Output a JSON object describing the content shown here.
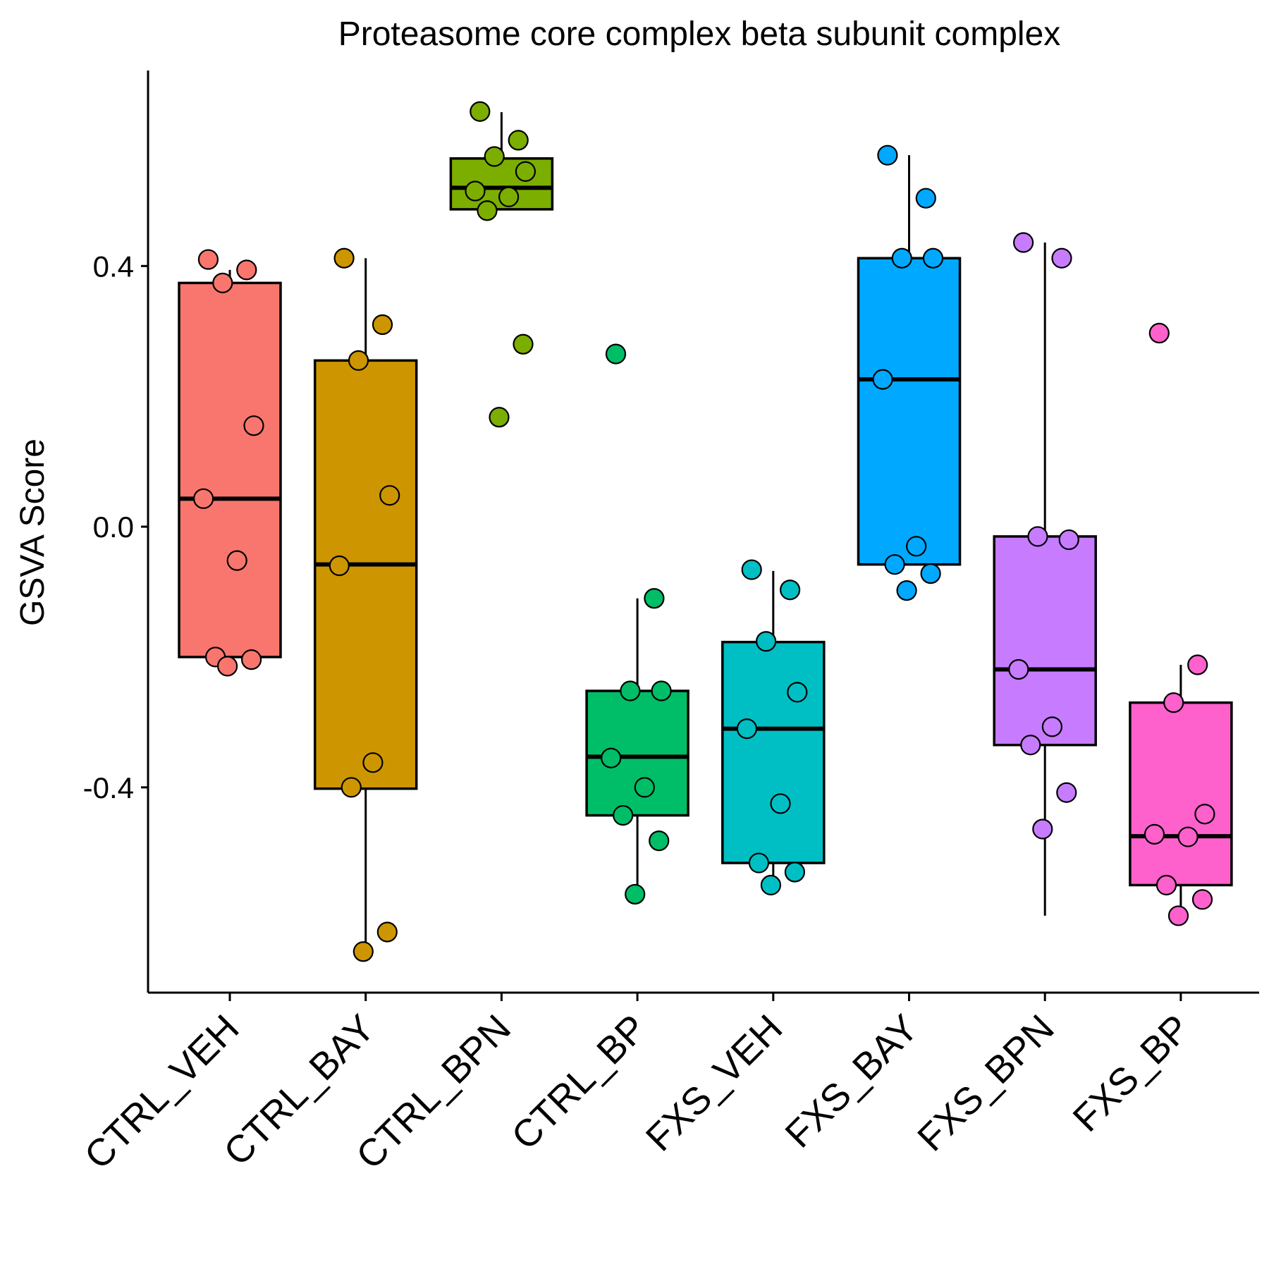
{
  "chart_data": {
    "type": "box",
    "title": "Proteasome core complex beta subunit complex",
    "xlabel": "",
    "ylabel": "GSVA Score",
    "ylim": [
      -0.715,
      0.7
    ],
    "yticks": [
      {
        "value": 0.4,
        "label": "0.4"
      },
      {
        "value": 0.0,
        "label": "0.0"
      },
      {
        "value": -0.4,
        "label": "-0.4"
      }
    ],
    "grid": false,
    "legend": "none",
    "categories": [
      "CTRL_VEH",
      "CTRL_BAY",
      "CTRL_BPN",
      "CTRL_BP",
      "FXS_VEH",
      "FXS_BAY",
      "FXS_BPN",
      "FXS_BP"
    ],
    "colors": [
      "#F8766D",
      "#CD9600",
      "#7CAE00",
      "#00BE67",
      "#00BFC4",
      "#00A9FF",
      "#C77CFF",
      "#FF61CC"
    ],
    "boxes": [
      {
        "q1": -0.2,
        "median": 0.043,
        "q3": 0.374,
        "whisker_low": -0.212,
        "whisker_high": 0.394
      },
      {
        "q1": -0.402,
        "median": -0.058,
        "q3": 0.255,
        "whisker_low": -0.652,
        "whisker_high": 0.412
      },
      {
        "q1": 0.487,
        "median": 0.52,
        "q3": 0.565,
        "whisker_low": 0.487,
        "whisker_high": 0.636
      },
      {
        "q1": -0.443,
        "median": -0.353,
        "q3": -0.252,
        "whisker_low": -0.564,
        "whisker_high": -0.11
      },
      {
        "q1": -0.516,
        "median": -0.31,
        "q3": -0.177,
        "whisker_low": -0.55,
        "whisker_high": -0.068
      },
      {
        "q1": -0.058,
        "median": 0.226,
        "q3": 0.412,
        "whisker_low": -0.058,
        "whisker_high": 0.57
      },
      {
        "q1": -0.335,
        "median": -0.219,
        "q3": -0.015,
        "whisker_low": -0.597,
        "whisker_high": 0.436
      },
      {
        "q1": -0.55,
        "median": -0.475,
        "q3": -0.27,
        "whisker_low": -0.597,
        "whisker_high": -0.212
      }
    ],
    "points": [
      [
        0.41,
        0.394,
        0.374,
        0.155,
        0.043,
        -0.052,
        -0.2,
        -0.204,
        -0.214
      ],
      [
        0.412,
        0.31,
        0.255,
        0.048,
        -0.06,
        -0.362,
        -0.4,
        -0.622,
        -0.652
      ],
      [
        0.637,
        0.593,
        0.568,
        0.545,
        0.515,
        0.506,
        0.485,
        0.28,
        0.168
      ],
      [
        0.265,
        -0.11,
        -0.252,
        -0.252,
        -0.355,
        -0.4,
        -0.443,
        -0.482,
        -0.564
      ],
      [
        -0.066,
        -0.097,
        -0.176,
        -0.254,
        -0.31,
        -0.425,
        -0.516,
        -0.53,
        -0.55
      ],
      [
        0.57,
        0.504,
        0.412,
        0.412,
        0.226,
        -0.03,
        -0.058,
        -0.072,
        -0.098
      ],
      [
        0.436,
        0.412,
        -0.015,
        -0.02,
        -0.219,
        -0.307,
        -0.335,
        -0.408,
        -0.464
      ],
      [
        0.297,
        -0.212,
        -0.27,
        -0.441,
        -0.472,
        -0.476,
        -0.55,
        -0.572,
        -0.597
      ]
    ]
  }
}
